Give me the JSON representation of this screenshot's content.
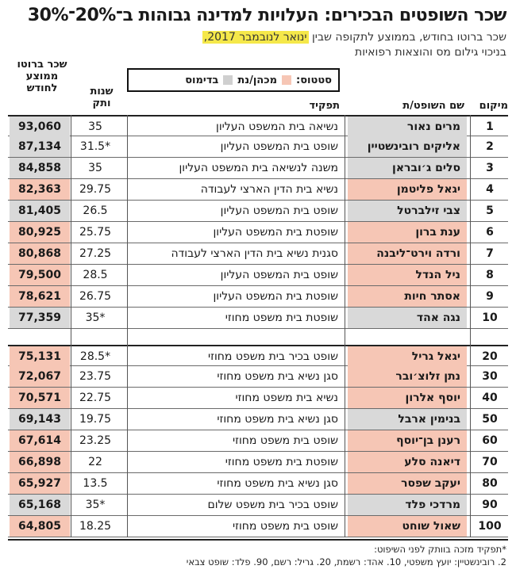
{
  "title": "שכר השופטים הבכירים: העלויות למדינה גבוהות ב־20%־30%",
  "subtitle": {
    "line1_before": "שכר ברוטו בחודש, בממוצע לתקופה שבין ",
    "line1_highlight": "ינואר לנובמבר 2017,",
    "line2": "בניכוי גילום מס והוצאות רפואיות"
  },
  "legend": {
    "label": "סטטוס:",
    "items": [
      {
        "label": "מכהן/נת",
        "color": "#f6c6b5"
      },
      {
        "label": "בדימוס",
        "color": "#cfcfcf"
      }
    ]
  },
  "headers": {
    "rank": "מיקום",
    "name": "שם השופט/ת",
    "role": "תפקיד",
    "years": "שנות ותק",
    "salary": "שכר ברוטו ממוצע לחודש"
  },
  "rows_top": [
    {
      "rank": "1",
      "name": "מרים נאור",
      "role": "נשיאה בית המשפט העליון",
      "years": "35",
      "salary": "93,060",
      "status": "grey"
    },
    {
      "rank": "2",
      "name": "אליקים רובינשטיין",
      "role": "שופט בית המשפט העליון",
      "years": "*31.5",
      "salary": "87,134",
      "status": "grey"
    },
    {
      "rank": "3",
      "name": "סלים ג׳ובראן",
      "role": "משנה לנשיאה בית המשפט העליון",
      "years": "35",
      "salary": "84,858",
      "status": "grey"
    },
    {
      "rank": "4",
      "name": "יגאל פליטמן",
      "role": "נשיא בית הדין הארצי לעבודה",
      "years": "29.75",
      "salary": "82,363",
      "status": "pink"
    },
    {
      "rank": "5",
      "name": "צבי זילברטל",
      "role": "שופט בית המשפט העליון",
      "years": "26.5",
      "salary": "81,405",
      "status": "grey"
    },
    {
      "rank": "6",
      "name": "ענת ברון",
      "role": "שופטת בית המשפט העליון",
      "years": "25.75",
      "salary": "80,925",
      "status": "pink"
    },
    {
      "rank": "7",
      "name": "ורדה וירט־ליבנה",
      "role": "סגנית נשיא בית הדין הארצי לעבודה",
      "years": "27.25",
      "salary": "80,868",
      "status": "pink"
    },
    {
      "rank": "8",
      "name": "ניל הנדל",
      "role": "שופט בית המשפט העליון",
      "years": "28.5",
      "salary": "79,500",
      "status": "pink"
    },
    {
      "rank": "9",
      "name": "אסתר חיות",
      "role": "שופטת בית המשפט העליון",
      "years": "26.75",
      "salary": "78,621",
      "status": "pink"
    },
    {
      "rank": "10",
      "name": "נגה אהד",
      "role": "שופטת בית משפט מחוזי",
      "years": "*35",
      "salary": "77,359",
      "status": "grey"
    }
  ],
  "rows_bottom": [
    {
      "rank": "20",
      "name": "יגאל גריל",
      "role": "שופט בכיר בית משפט מחוזי",
      "years": "*28.5",
      "salary": "75,131",
      "status": "pink"
    },
    {
      "rank": "30",
      "name": "נתן זלוצ׳ובר",
      "role": "סגן נשיא בית משפט מחוזי",
      "years": "23.75",
      "salary": "72,067",
      "status": "pink"
    },
    {
      "rank": "40",
      "name": "יוסף אלרון",
      "role": "נשיא בית משפט מחוזי",
      "years": "22.75",
      "salary": "70,571",
      "status": "pink"
    },
    {
      "rank": "50",
      "name": "בנימין ארבל",
      "role": "סגן נשיא בית משפט מחוזי",
      "years": "19.75",
      "salary": "69,143",
      "status": "grey"
    },
    {
      "rank": "60",
      "name": "רענן בן־יוסף",
      "role": "שופט בית משפט מחוזי",
      "years": "23.25",
      "salary": "67,614",
      "status": "pink"
    },
    {
      "rank": "70",
      "name": "דיאנה סלע",
      "role": "שופטת בית משפט מחוזי",
      "years": "22",
      "salary": "66,898",
      "status": "pink"
    },
    {
      "rank": "80",
      "name": "יעקב שפסר",
      "role": "סגן נשיא בית משפט מחוזי",
      "years": "13.5",
      "salary": "65,927",
      "status": "pink"
    },
    {
      "rank": "90",
      "name": "מרדכי פלד",
      "role": "שופט בכיר בית משפט שלום",
      "years": "*35",
      "salary": "65,168",
      "status": "grey"
    },
    {
      "rank": "100",
      "name": "שאול שוחט",
      "role": "שופט בית משפט מחוזי",
      "years": "18.25",
      "salary": "64,805",
      "status": "pink"
    }
  ],
  "footnotes": [
    "*תפקיד מזכה בוותק לפני השיפוט:",
    "2. רובינשטיין: יועץ משפטי, 10. אהד: רשמת, 20. גריל: רשם, 90. פלד: שופט צבאי"
  ]
}
